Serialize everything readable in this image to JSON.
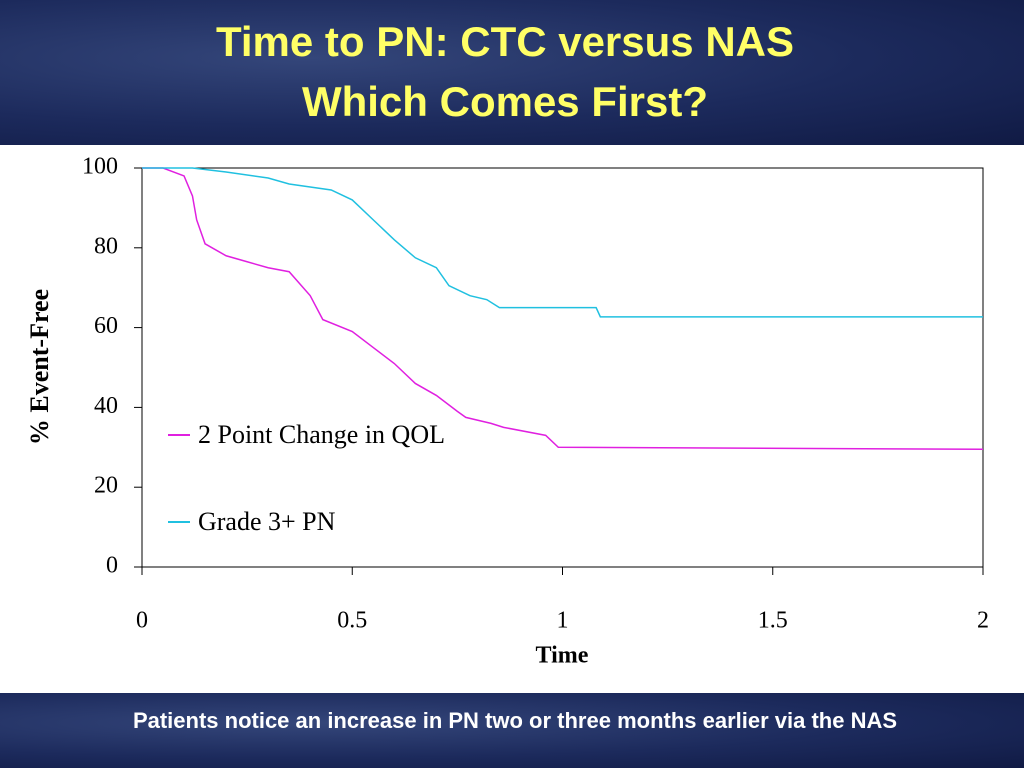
{
  "slide_title": [
    "Time to PN: CTC  versus NAS",
    "Which Comes First?"
  ],
  "footer": "Patients notice an increase in PN two or three months earlier via the NAS",
  "chart_data": {
    "type": "line",
    "xlabel": "Time",
    "ylabel": "% Event-Free",
    "xlim": [
      0,
      2
    ],
    "xticks": [
      0,
      0.5,
      1,
      1.5,
      2
    ],
    "ylim": [
      0,
      100
    ],
    "yticks": [
      0,
      20,
      40,
      60,
      80,
      100
    ],
    "series": [
      {
        "name": "2 Point Change in QOL",
        "color": "#e020e0",
        "x": [
          0,
          0.05,
          0.1,
          0.12,
          0.13,
          0.15,
          0.2,
          0.25,
          0.3,
          0.35,
          0.4,
          0.43,
          0.5,
          0.55,
          0.6,
          0.65,
          0.7,
          0.75,
          0.77,
          0.83,
          0.86,
          0.96,
          0.99,
          2
        ],
        "values": [
          100,
          100,
          98,
          93,
          87,
          81,
          78,
          76.5,
          75,
          74,
          68,
          62,
          59,
          55,
          51,
          46,
          43,
          39,
          37.5,
          36,
          35,
          33,
          30,
          29.5
        ]
      },
      {
        "name": "Grade 3+ PN",
        "color": "#20c0e0",
        "x": [
          0,
          0.12,
          0.2,
          0.3,
          0.35,
          0.45,
          0.5,
          0.55,
          0.6,
          0.65,
          0.7,
          0.73,
          0.78,
          0.82,
          0.85,
          1.08,
          1.09,
          2
        ],
        "values": [
          100,
          100,
          99,
          97.5,
          96,
          94.5,
          92,
          87,
          82,
          77.5,
          75,
          70.5,
          68,
          67,
          65,
          65,
          62.7,
          62.7
        ]
      }
    ]
  }
}
